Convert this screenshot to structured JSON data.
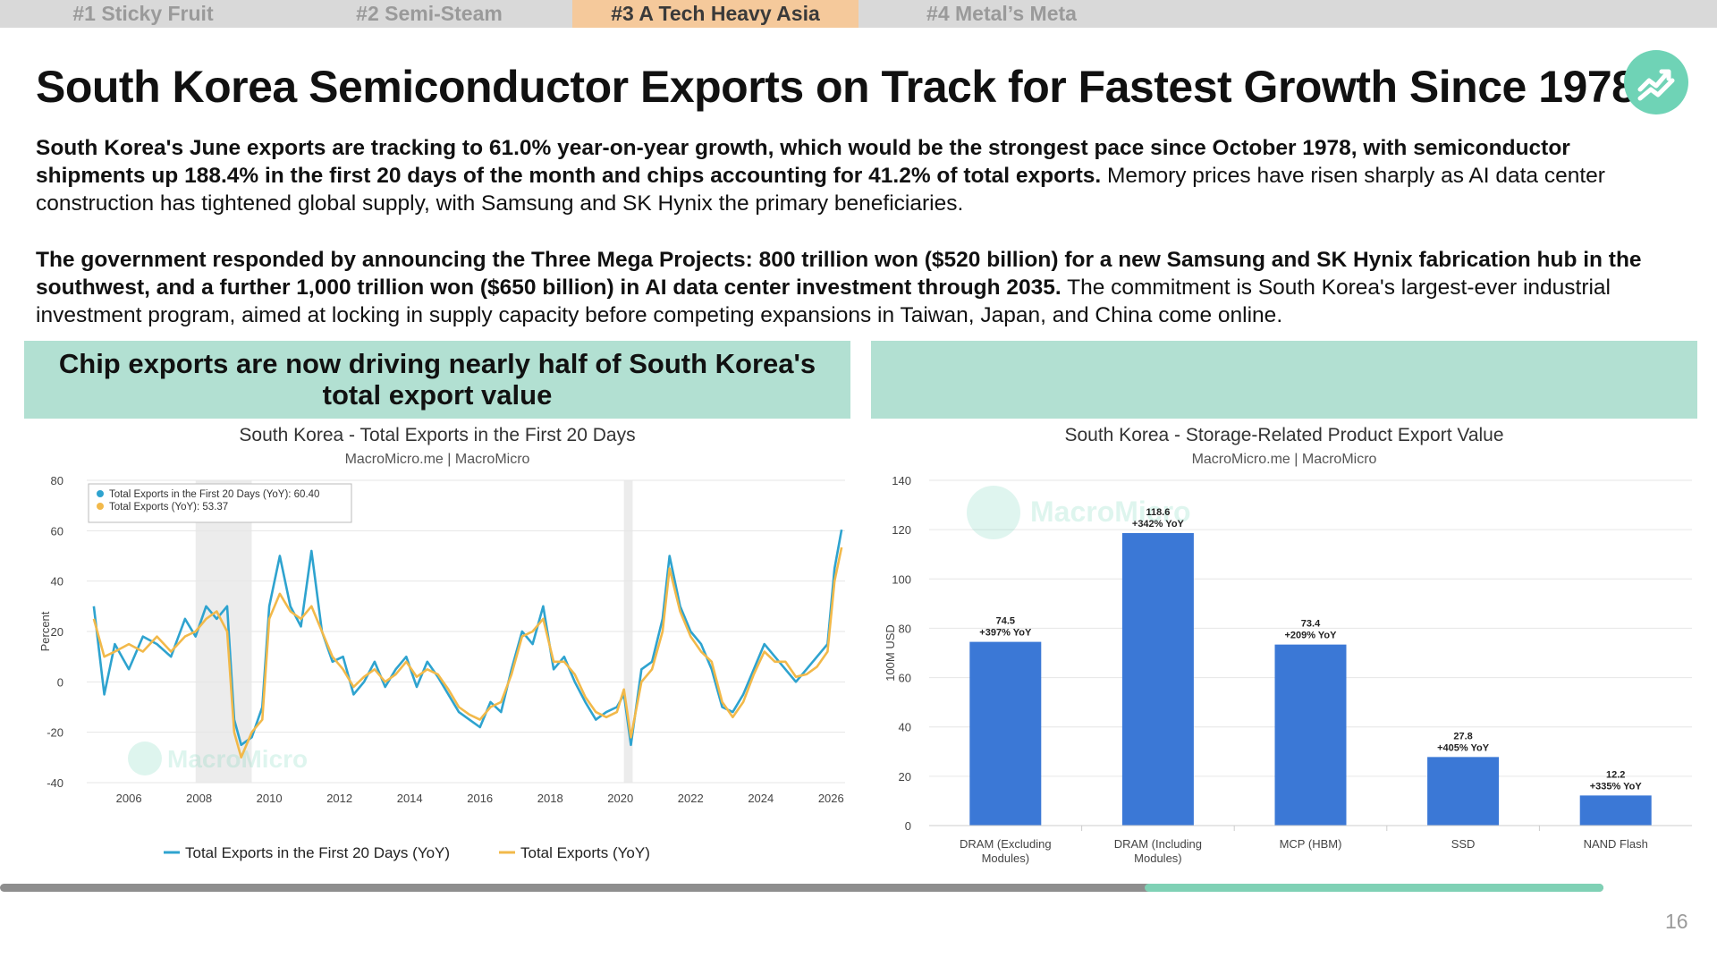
{
  "tabs": [
    {
      "label": "#1 Sticky Fruit",
      "active": false
    },
    {
      "label": "#2 Semi-Steam",
      "active": false
    },
    {
      "label": "#3 A Tech Heavy Asia",
      "active": true
    },
    {
      "label": "#4 Metal’s Meta",
      "active": false
    }
  ],
  "title": "South Korea Semiconductor Exports on Track for Fastest Growth Since 1978",
  "logo": {
    "icon": "macromicro-chart-icon",
    "color": "#6fd3b6"
  },
  "paragraph1": {
    "bold": "South Korea's June exports are tracking to 61.0% year-on-year growth, which would be the strongest pace since October 1978, with semiconductor shipments up 188.4% in the first 20 days of the month and chips accounting for 41.2% of total exports.",
    "normal": " Memory prices have risen sharply as AI data center construction has tightened global supply, with Samsung and SK Hynix the primary beneficiaries."
  },
  "paragraph2": {
    "bold": "The government responded by announcing the Three Mega Projects: 800 trillion won ($520 billion) for a new Samsung and SK Hynix fabrication hub in the southwest, and a further 1,000 trillion won ($650 billion) in AI data center investment through 2035.",
    "normal": " The commitment is South Korea's largest-ever industrial investment program, aimed at locking in supply capacity before competing expansions in Taiwan, Japan, and China come online."
  },
  "left_banner": "Chip exports are now driving nearly half of South Korea's total export value",
  "right_banner": "",
  "watermark": "MacroMicro",
  "colors": {
    "series_blue": "#2ea3cf",
    "series_orange": "#f2b94a",
    "bar_blue": "#3b78d6",
    "accent_green": "#b2e0d2"
  },
  "chart_data": [
    {
      "type": "line",
      "title": "South Korea - Total Exports in the First 20 Days",
      "subtitle": "MacroMicro.me | MacroMicro",
      "ylabel": "Percent",
      "ylim": [
        -40,
        80
      ],
      "yticks": [
        "80",
        "60",
        "40",
        "20",
        "0",
        "-20",
        "-40"
      ],
      "xlim": [
        2004.8,
        2026.4
      ],
      "xticks": [
        "2006",
        "2008",
        "2010",
        "2012",
        "2014",
        "2016",
        "2018",
        "2020",
        "2022",
        "2024",
        "2026"
      ],
      "grid": true,
      "shaded_periods": [
        [
          2007.9,
          2009.5
        ],
        [
          2020.1,
          2020.35
        ]
      ],
      "legend_box": [
        "Total Exports in the First 20 Days (YoY): 60.40",
        "Total Exports (YoY): 53.37"
      ],
      "series": [
        {
          "name": "Total Exports in the First 20 Days (YoY)",
          "color": "#2ea3cf",
          "points": [
            [
              2005.0,
              30
            ],
            [
              2005.3,
              -5
            ],
            [
              2005.6,
              15
            ],
            [
              2006.0,
              5
            ],
            [
              2006.4,
              18
            ],
            [
              2006.8,
              15
            ],
            [
              2007.2,
              10
            ],
            [
              2007.6,
              25
            ],
            [
              2007.9,
              18
            ],
            [
              2008.2,
              30
            ],
            [
              2008.5,
              25
            ],
            [
              2008.8,
              30
            ],
            [
              2009.0,
              -15
            ],
            [
              2009.2,
              -25
            ],
            [
              2009.5,
              -22
            ],
            [
              2009.8,
              -10
            ],
            [
              2010.0,
              30
            ],
            [
              2010.3,
              50
            ],
            [
              2010.6,
              30
            ],
            [
              2010.9,
              22
            ],
            [
              2011.2,
              52
            ],
            [
              2011.5,
              20
            ],
            [
              2011.8,
              8
            ],
            [
              2012.1,
              10
            ],
            [
              2012.4,
              -5
            ],
            [
              2012.7,
              0
            ],
            [
              2013.0,
              8
            ],
            [
              2013.3,
              -2
            ],
            [
              2013.6,
              5
            ],
            [
              2013.9,
              10
            ],
            [
              2014.2,
              -2
            ],
            [
              2014.5,
              8
            ],
            [
              2014.8,
              2
            ],
            [
              2015.1,
              -5
            ],
            [
              2015.4,
              -12
            ],
            [
              2015.7,
              -15
            ],
            [
              2016.0,
              -18
            ],
            [
              2016.3,
              -8
            ],
            [
              2016.6,
              -12
            ],
            [
              2016.9,
              5
            ],
            [
              2017.2,
              20
            ],
            [
              2017.5,
              15
            ],
            [
              2017.8,
              30
            ],
            [
              2018.1,
              5
            ],
            [
              2018.4,
              10
            ],
            [
              2018.7,
              0
            ],
            [
              2019.0,
              -8
            ],
            [
              2019.3,
              -15
            ],
            [
              2019.6,
              -12
            ],
            [
              2019.9,
              -10
            ],
            [
              2020.1,
              -5
            ],
            [
              2020.3,
              -25
            ],
            [
              2020.6,
              5
            ],
            [
              2020.9,
              8
            ],
            [
              2021.2,
              25
            ],
            [
              2021.4,
              50
            ],
            [
              2021.7,
              30
            ],
            [
              2022.0,
              20
            ],
            [
              2022.3,
              15
            ],
            [
              2022.6,
              5
            ],
            [
              2022.9,
              -10
            ],
            [
              2023.2,
              -12
            ],
            [
              2023.5,
              -5
            ],
            [
              2023.8,
              5
            ],
            [
              2024.1,
              15
            ],
            [
              2024.4,
              10
            ],
            [
              2024.7,
              5
            ],
            [
              2025.0,
              0
            ],
            [
              2025.3,
              5
            ],
            [
              2025.6,
              10
            ],
            [
              2025.9,
              15
            ],
            [
              2026.1,
              45
            ],
            [
              2026.3,
              60.4
            ]
          ]
        },
        {
          "name": "Total Exports (YoY)",
          "color": "#f2b94a",
          "points": [
            [
              2005.0,
              25
            ],
            [
              2005.3,
              10
            ],
            [
              2005.6,
              12
            ],
            [
              2006.0,
              15
            ],
            [
              2006.4,
              12
            ],
            [
              2006.8,
              18
            ],
            [
              2007.2,
              12
            ],
            [
              2007.6,
              18
            ],
            [
              2007.9,
              20
            ],
            [
              2008.2,
              25
            ],
            [
              2008.5,
              28
            ],
            [
              2008.8,
              20
            ],
            [
              2009.0,
              -20
            ],
            [
              2009.2,
              -30
            ],
            [
              2009.5,
              -20
            ],
            [
              2009.8,
              -15
            ],
            [
              2010.0,
              25
            ],
            [
              2010.3,
              35
            ],
            [
              2010.6,
              28
            ],
            [
              2010.9,
              25
            ],
            [
              2011.2,
              30
            ],
            [
              2011.5,
              20
            ],
            [
              2011.8,
              10
            ],
            [
              2012.1,
              5
            ],
            [
              2012.4,
              -2
            ],
            [
              2012.7,
              2
            ],
            [
              2013.0,
              5
            ],
            [
              2013.3,
              0
            ],
            [
              2013.6,
              3
            ],
            [
              2013.9,
              8
            ],
            [
              2014.2,
              2
            ],
            [
              2014.5,
              5
            ],
            [
              2014.8,
              3
            ],
            [
              2015.1,
              -3
            ],
            [
              2015.4,
              -10
            ],
            [
              2015.7,
              -13
            ],
            [
              2016.0,
              -15
            ],
            [
              2016.3,
              -10
            ],
            [
              2016.6,
              -8
            ],
            [
              2016.9,
              3
            ],
            [
              2017.2,
              18
            ],
            [
              2017.5,
              20
            ],
            [
              2017.8,
              25
            ],
            [
              2018.1,
              8
            ],
            [
              2018.4,
              8
            ],
            [
              2018.7,
              3
            ],
            [
              2019.0,
              -6
            ],
            [
              2019.3,
              -12
            ],
            [
              2019.6,
              -14
            ],
            [
              2019.9,
              -12
            ],
            [
              2020.1,
              -3
            ],
            [
              2020.3,
              -22
            ],
            [
              2020.6,
              0
            ],
            [
              2020.9,
              5
            ],
            [
              2021.2,
              20
            ],
            [
              2021.4,
              45
            ],
            [
              2021.7,
              28
            ],
            [
              2022.0,
              18
            ],
            [
              2022.3,
              12
            ],
            [
              2022.6,
              8
            ],
            [
              2022.9,
              -8
            ],
            [
              2023.2,
              -14
            ],
            [
              2023.5,
              -8
            ],
            [
              2023.8,
              3
            ],
            [
              2024.1,
              12
            ],
            [
              2024.4,
              8
            ],
            [
              2024.7,
              8
            ],
            [
              2025.0,
              2
            ],
            [
              2025.3,
              3
            ],
            [
              2025.6,
              6
            ],
            [
              2025.9,
              12
            ],
            [
              2026.1,
              40
            ],
            [
              2026.3,
              53.37
            ]
          ]
        }
      ],
      "legend": [
        "Total Exports in the First 20 Days (YoY)",
        "Total Exports (YoY)"
      ],
      "legend_position": "bottom"
    },
    {
      "type": "bar",
      "title": "South Korea - Storage-Related Product Export Value",
      "subtitle": "MacroMicro.me | MacroMicro",
      "ylabel": "100M USD",
      "ylim": [
        0,
        140
      ],
      "yticks": [
        "140",
        "120",
        "100",
        "80",
        "60",
        "40",
        "20",
        "0"
      ],
      "grid": true,
      "categories": [
        [
          "DRAM (Excluding",
          "Modules)"
        ],
        [
          "DRAM (Including",
          "Modules)"
        ],
        [
          "MCP (HBM)"
        ],
        [
          "SSD"
        ],
        [
          "NAND Flash"
        ]
      ],
      "values": [
        74.5,
        118.6,
        73.4,
        27.8,
        12.2
      ],
      "value_labels": [
        "74.5",
        "118.6",
        "73.4",
        "27.8",
        "12.2"
      ],
      "yoy_labels": [
        "+397% YoY",
        "+342% YoY",
        "+209% YoY",
        "+405% YoY",
        "+335% YoY"
      ]
    }
  ],
  "progress": 0.286,
  "page_number": "16"
}
